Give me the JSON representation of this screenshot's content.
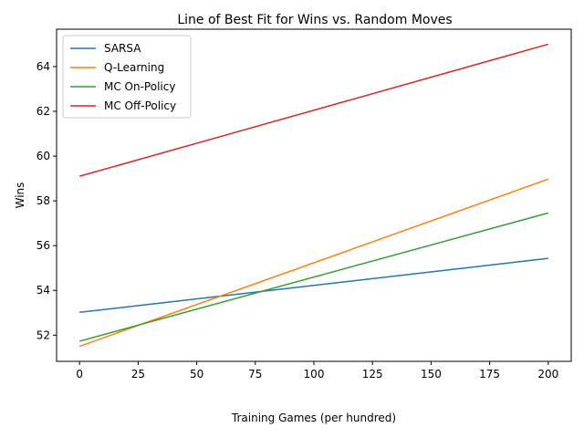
{
  "chart_data": {
    "type": "line",
    "title": "Line of Best Fit for Wins vs. Random Moves",
    "xlabel": "Training Games (per hundred)",
    "ylabel": "Wins",
    "xlim": [
      -9.8,
      209.8
    ],
    "ylim": [
      50.83,
      65.67
    ],
    "xticks": [
      0,
      25,
      50,
      75,
      100,
      125,
      150,
      175,
      200
    ],
    "yticks": [
      52,
      54,
      56,
      58,
      60,
      62,
      64
    ],
    "grid": false,
    "legend_position": "top-left",
    "series": [
      {
        "name": "SARSA",
        "color": "#1f77b4",
        "x": [
          0,
          200
        ],
        "y": [
          53.02,
          55.43
        ]
      },
      {
        "name": "Q-Learning",
        "color": "#ff7f0e",
        "x": [
          0,
          200
        ],
        "y": [
          51.5,
          58.97
        ]
      },
      {
        "name": "MC On-Policy",
        "color": "#2ca02c",
        "x": [
          0,
          200
        ],
        "y": [
          51.73,
          57.46
        ]
      },
      {
        "name": "MC Off-Policy",
        "color": "#d62728",
        "x": [
          0,
          200
        ],
        "y": [
          59.1,
          65.0
        ]
      }
    ]
  }
}
